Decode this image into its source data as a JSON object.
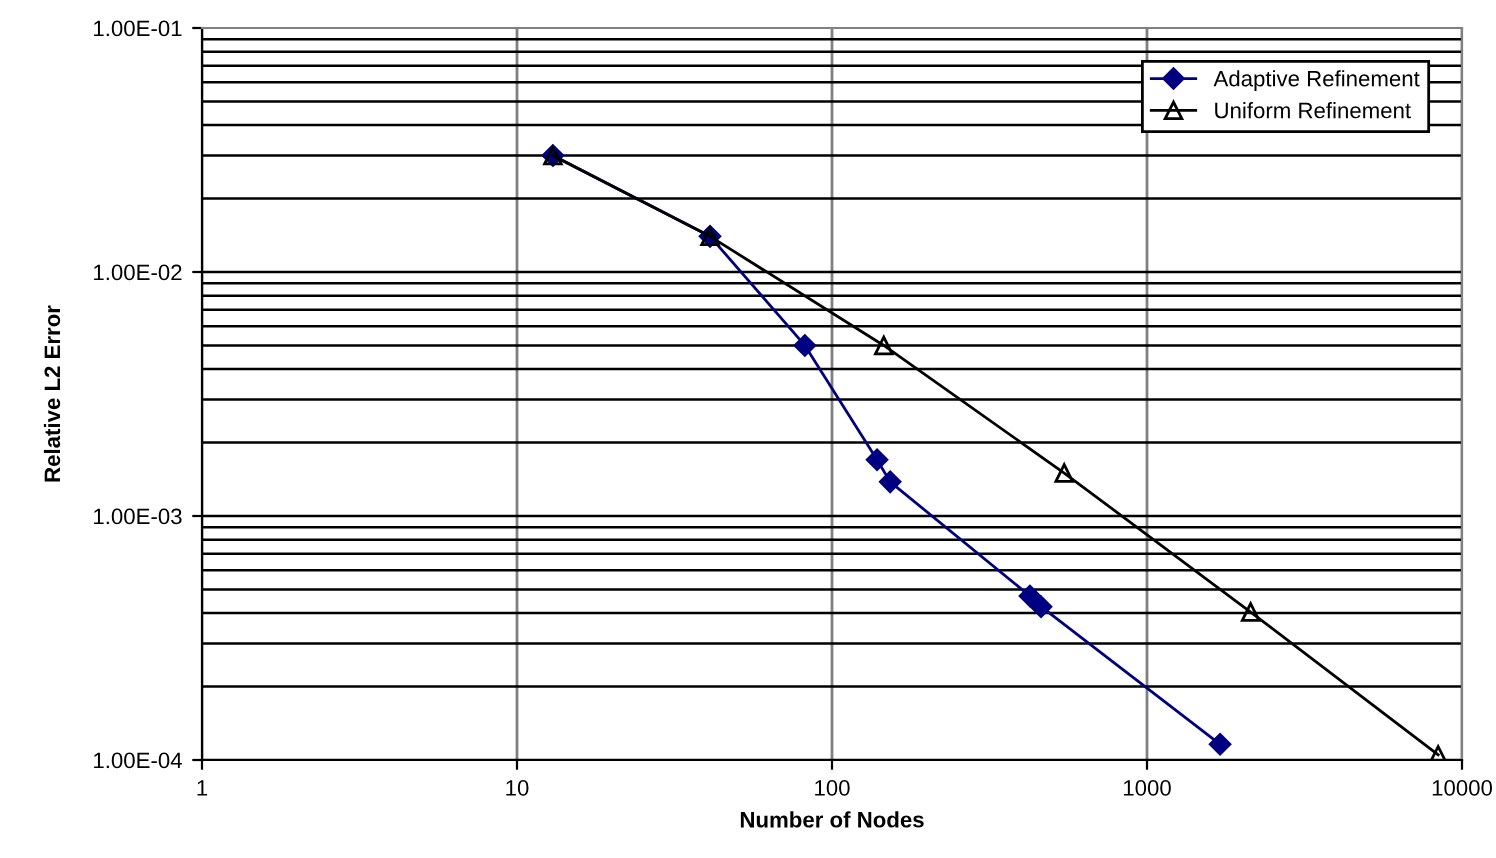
{
  "chart_data": {
    "type": "line",
    "xlabel": "Number of Nodes",
    "ylabel": "Relative L2 Error",
    "log": "xy",
    "xlim": [
      1,
      10000
    ],
    "xticks": [
      1,
      10,
      100,
      1000,
      10000
    ],
    "ylim": [
      0.0001,
      0.1
    ],
    "yticks": [
      {
        "value": 0.0001,
        "label": "1.00E-04"
      },
      {
        "value": 0.001,
        "label": "1.00E-03"
      },
      {
        "value": 0.01,
        "label": "1.00E-02"
      },
      {
        "value": 0.1,
        "label": "1.00E-01"
      }
    ],
    "grid": true,
    "legend": "top right",
    "series": [
      {
        "name": "Adaptive Refinement",
        "color": "#000080",
        "marker": "diamond",
        "x": [
          13,
          41,
          82,
          139,
          153,
          425,
          461,
          1706
        ],
        "values": [
          0.03,
          0.014,
          0.005,
          0.0017,
          0.00138,
          0.00047,
          0.000425,
          0.000116
        ]
      },
      {
        "name": "Uniform Refinement",
        "color": "#000000",
        "marker": "triangle",
        "x": [
          13,
          41,
          146,
          546,
          2133,
          8400
        ],
        "values": [
          0.03,
          0.014,
          0.005,
          0.0015,
          0.000404,
          0.000105
        ]
      }
    ]
  }
}
